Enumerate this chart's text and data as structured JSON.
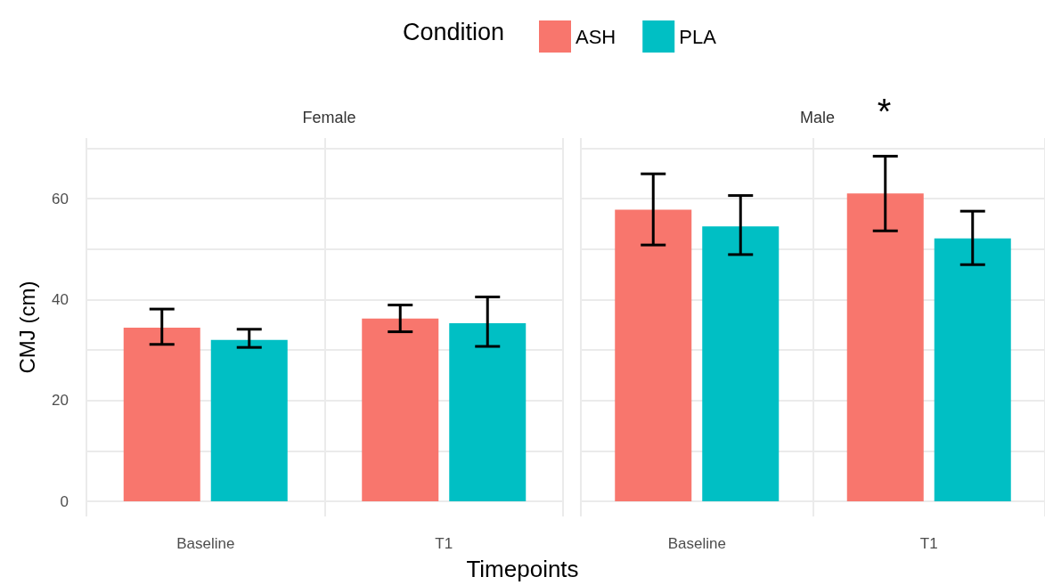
{
  "chart_data": [
    {
      "type": "bar",
      "title": "Female",
      "xlabel": "Timepoints",
      "ylabel": "CMJ (cm)",
      "legend_title": "Condition",
      "legend": "top",
      "categories": [
        "Baseline",
        "T1"
      ],
      "series": [
        {
          "name": "ASH",
          "color": "#f8766d",
          "values": [
            34.4,
            36.2
          ],
          "errors": [
            [
              31.1,
              38.1
            ],
            [
              33.6,
              38.9
            ]
          ]
        },
        {
          "name": "PLA",
          "color": "#00bfc4",
          "values": [
            32.0,
            35.3
          ],
          "errors": [
            [
              30.5,
              34.1
            ],
            [
              30.7,
              40.5
            ]
          ]
        }
      ],
      "ylim": [
        -3,
        72
      ],
      "yticks": [
        0,
        {
          "value": 10,
          "label": null
        },
        20,
        {
          "value": 30,
          "label": null
        },
        40,
        {
          "value": 50,
          "label": null
        },
        60,
        {
          "value": 70,
          "label": null
        }
      ],
      "grid": true
    },
    {
      "type": "bar",
      "title": "Male",
      "tick_labels": "x",
      "annotations": [
        "*"
      ],
      "categories": [
        "Baseline",
        "T1"
      ],
      "series": [
        {
          "color": "#f8766d",
          "values": [
            57.8,
            61.0
          ],
          "errors": [
            [
              50.8,
              64.9
            ],
            [
              53.6,
              68.4
            ]
          ]
        },
        {
          "color": "#00bfc4",
          "values": [
            54.5,
            52.1
          ],
          "errors": [
            [
              48.9,
              60.6
            ],
            [
              46.9,
              57.5
            ]
          ]
        }
      ],
      "ylim": [
        -3,
        72
      ],
      "yticks": [
        0,
        {
          "value": 10,
          "label": null
        },
        20,
        {
          "value": 30,
          "label": null
        },
        40,
        {
          "value": 50,
          "label": null
        },
        60,
        {
          "value": 70,
          "label": null
        }
      ],
      "grid": true
    }
  ]
}
